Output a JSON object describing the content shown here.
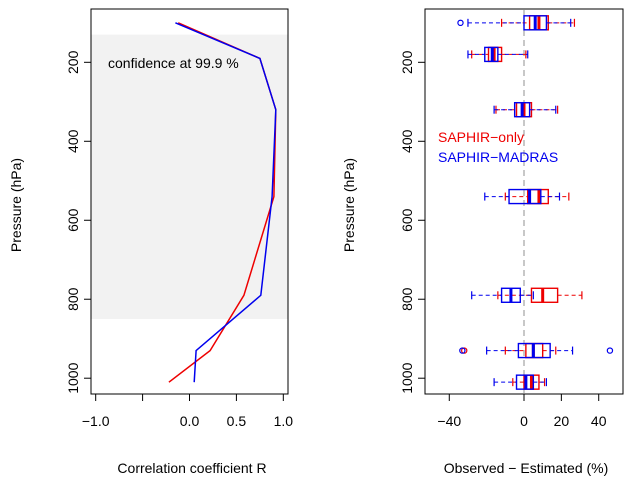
{
  "chart_data": [
    {
      "type": "line",
      "xlabel": "Correlation coefficient R",
      "ylabel": "Pressure (hPa)",
      "xlim": [
        -1.05,
        1.05
      ],
      "ylim_reversed": [
        1040,
        65
      ],
      "x_ticks": [
        -1.0,
        -0.5,
        0.0,
        0.5,
        1.0
      ],
      "x_tick_labels": [
        "−1.0",
        "",
        "0.0",
        "0.5",
        "1.0"
      ],
      "y_ticks": [
        200,
        400,
        600,
        800,
        1000
      ],
      "y_tick_labels": [
        "200",
        "400",
        "600",
        "800",
        "1000"
      ],
      "confidence_band": {
        "label": "confidence at 99.9 %",
        "pressure_top": 130,
        "pressure_bottom": 850,
        "color": "#f2f2f2"
      },
      "series": [
        {
          "color": "#ee0000",
          "points": [
            [
              -0.12,
              100
            ],
            [
              0.75,
              190
            ],
            [
              0.92,
              320
            ],
            [
              0.9,
              540
            ],
            [
              0.58,
              790
            ],
            [
              0.22,
              930
            ],
            [
              -0.22,
              1010
            ]
          ]
        },
        {
          "color": "#0000ee",
          "points": [
            [
              -0.15,
              100
            ],
            [
              0.75,
              190
            ],
            [
              0.92,
              320
            ],
            [
              0.88,
              540
            ],
            [
              0.76,
              790
            ],
            [
              0.07,
              930
            ],
            [
              0.05,
              1010
            ]
          ]
        }
      ]
    },
    {
      "type": "boxplot",
      "xlabel": "Observed − Estimated (%)",
      "ylabel": "Pressure (hPa)",
      "xlim": [
        -53,
        53
      ],
      "ylim_reversed": [
        1040,
        65
      ],
      "x_ticks": [
        -40,
        0,
        20,
        40
      ],
      "x_tick_labels": [
        "−40",
        "0",
        "20",
        "40"
      ],
      "y_ticks": [
        200,
        400,
        600,
        800,
        1000
      ],
      "y_tick_labels": [
        "200",
        "400",
        "600",
        "800",
        "1000"
      ],
      "zero_line": {
        "x": 0,
        "color": "#aaaaaa"
      },
      "legend": {
        "position": "left-middle",
        "entries": [
          {
            "label": "SAPHIR−only",
            "color": "#ee0000"
          },
          {
            "label": "SAPHIR−MADRAS",
            "color": "#0000ee"
          }
        ]
      },
      "boxes": [
        {
          "series": "SAPHIR−only",
          "color": "#ee0000",
          "pressure": 100,
          "whisker_low": -12,
          "q1": 3,
          "median": 8,
          "q3": 13,
          "whisker_high": 27,
          "outliers": []
        },
        {
          "series": "SAPHIR−MADRAS",
          "color": "#0000ee",
          "pressure": 100,
          "whisker_low": -30,
          "q1": 0,
          "median": 6,
          "q3": 12,
          "whisker_high": 25,
          "outliers": [
            -34
          ]
        },
        {
          "series": "SAPHIR−only",
          "color": "#ee0000",
          "pressure": 180,
          "whisker_low": -28,
          "q1": -19,
          "median": -16,
          "q3": -12,
          "whisker_high": 1,
          "outliers": []
        },
        {
          "series": "SAPHIR−MADRAS",
          "color": "#0000ee",
          "pressure": 180,
          "whisker_low": -30,
          "q1": -21,
          "median": -17,
          "q3": -14,
          "whisker_high": 2,
          "outliers": []
        },
        {
          "series": "SAPHIR−only",
          "color": "#ee0000",
          "pressure": 320,
          "whisker_low": -15,
          "q1": -4,
          "median": 0,
          "q3": 4,
          "whisker_high": 18,
          "outliers": []
        },
        {
          "series": "SAPHIR−MADRAS",
          "color": "#0000ee",
          "pressure": 320,
          "whisker_low": -16,
          "q1": -5,
          "median": -1,
          "q3": 3,
          "whisker_high": 17,
          "outliers": []
        },
        {
          "series": "SAPHIR−only",
          "color": "#ee0000",
          "pressure": 540,
          "whisker_low": -10,
          "q1": 2,
          "median": 8,
          "q3": 13,
          "whisker_high": 24,
          "outliers": []
        },
        {
          "series": "SAPHIR−MADRAS",
          "color": "#0000ee",
          "pressure": 540,
          "whisker_low": -21,
          "q1": -8,
          "median": 3,
          "q3": 9,
          "whisker_high": 19,
          "outliers": []
        },
        {
          "series": "SAPHIR−only",
          "color": "#ee0000",
          "pressure": 790,
          "whisker_low": -14,
          "q1": 4,
          "median": 10,
          "q3": 18,
          "whisker_high": 31,
          "outliers": []
        },
        {
          "series": "SAPHIR−MADRAS",
          "color": "#0000ee",
          "pressure": 790,
          "whisker_low": -28,
          "q1": -12,
          "median": -7,
          "q3": -2,
          "whisker_high": 5,
          "outliers": []
        },
        {
          "series": "SAPHIR−only",
          "color": "#ee0000",
          "pressure": 930,
          "whisker_low": -10,
          "q1": 1,
          "median": 5,
          "q3": 10,
          "whisker_high": 17,
          "outliers": [
            -32
          ]
        },
        {
          "series": "SAPHIR−MADRAS",
          "color": "#0000ee",
          "pressure": 930,
          "whisker_low": -20,
          "q1": -3,
          "median": 5,
          "q3": 14,
          "whisker_high": 26,
          "outliers": [
            -33,
            46
          ]
        },
        {
          "series": "SAPHIR−only",
          "color": "#ee0000",
          "pressure": 1010,
          "whisker_low": -6,
          "q1": 0,
          "median": 4,
          "q3": 8,
          "whisker_high": 11,
          "outliers": []
        },
        {
          "series": "SAPHIR−MADRAS",
          "color": "#0000ee",
          "pressure": 1010,
          "whisker_low": -16,
          "q1": -4,
          "median": 1,
          "q3": 5,
          "whisker_high": 12,
          "outliers": []
        }
      ]
    }
  ]
}
